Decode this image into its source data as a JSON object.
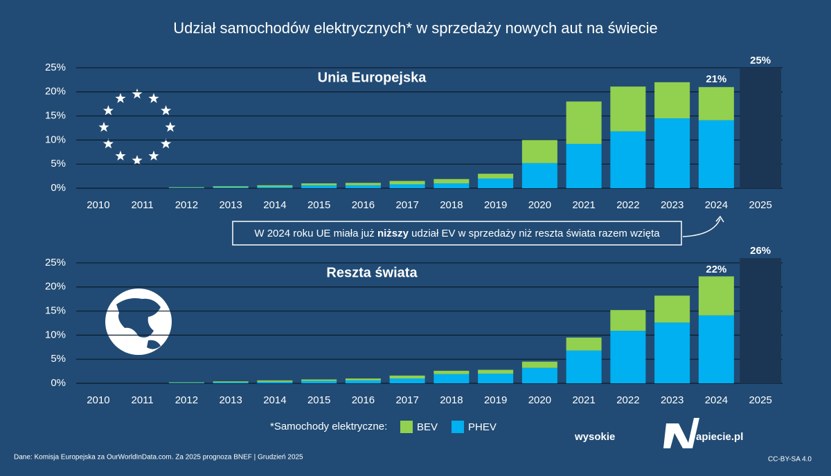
{
  "title": "Udział samochodów elektrycznych* w sprzedaży nowych aut na świecie",
  "chart_data": [
    {
      "type": "bar",
      "stacked": true,
      "title": "Unia Europejska",
      "categories": [
        "2010",
        "2011",
        "2012",
        "2013",
        "2014",
        "2015",
        "2016",
        "2017",
        "2018",
        "2019",
        "2020",
        "2021",
        "2022",
        "2023",
        "2024",
        "2025"
      ],
      "series": [
        {
          "name": "PHEV",
          "color": "#00b0f0",
          "values": [
            0,
            0,
            0.1,
            0.2,
            0.3,
            0.6,
            0.6,
            0.8,
            1.0,
            2.0,
            5.2,
            9.2,
            11.8,
            14.5,
            14.1,
            null
          ]
        },
        {
          "name": "BEV",
          "color": "#92d050",
          "values": [
            0,
            0,
            0.1,
            0.2,
            0.3,
            0.4,
            0.5,
            0.7,
            0.9,
            1.0,
            4.8,
            8.8,
            9.3,
            7.5,
            6.9,
            null
          ]
        }
      ],
      "totals": {
        "values": [
          null,
          null,
          null,
          null,
          null,
          null,
          null,
          null,
          null,
          null,
          null,
          null,
          null,
          null,
          21,
          null
        ],
        "value_labels": [
          null,
          null,
          null,
          null,
          null,
          null,
          null,
          null,
          null,
          null,
          null,
          null,
          null,
          null,
          "21%",
          null
        ]
      },
      "forecast": {
        "color": "#1b3654",
        "values": [
          null,
          null,
          null,
          null,
          null,
          null,
          null,
          null,
          null,
          null,
          null,
          null,
          null,
          null,
          null,
          25
        ],
        "value_labels": [
          null,
          null,
          null,
          null,
          null,
          null,
          null,
          null,
          null,
          null,
          null,
          null,
          null,
          null,
          null,
          "25%"
        ]
      },
      "ylim": [
        0,
        26
      ],
      "yticks": [
        {
          "value": 0,
          "label": "0%"
        },
        {
          "value": 5,
          "label": "5%"
        },
        {
          "value": 10,
          "label": "10%"
        },
        {
          "value": 15,
          "label": "15%"
        },
        {
          "value": 20,
          "label": "20%"
        },
        {
          "value": 25,
          "label": "25%"
        }
      ],
      "grid": true
    },
    {
      "type": "bar",
      "stacked": true,
      "title": "Reszta świata",
      "categories": [
        "2010",
        "2011",
        "2012",
        "2013",
        "2014",
        "2015",
        "2016",
        "2017",
        "2018",
        "2019",
        "2020",
        "2021",
        "2022",
        "2023",
        "2024",
        "2025"
      ],
      "series": [
        {
          "name": "PHEV",
          "color": "#00b0f0",
          "values": [
            0,
            0,
            0.1,
            0.2,
            0.3,
            0.5,
            0.6,
            1.0,
            1.9,
            2.0,
            3.2,
            6.8,
            10.9,
            12.6,
            14.1,
            null
          ]
        },
        {
          "name": "BEV",
          "color": "#92d050",
          "values": [
            0,
            0,
            0.1,
            0.2,
            0.3,
            0.3,
            0.4,
            0.6,
            0.7,
            0.8,
            1.3,
            2.7,
            4.3,
            5.6,
            8.1,
            null
          ]
        }
      ],
      "totals": {
        "values": [
          null,
          null,
          null,
          null,
          null,
          null,
          null,
          null,
          null,
          null,
          null,
          null,
          null,
          null,
          22,
          null
        ],
        "value_labels": [
          null,
          null,
          null,
          null,
          null,
          null,
          null,
          null,
          null,
          null,
          null,
          null,
          null,
          null,
          "22%",
          null
        ]
      },
      "forecast": {
        "color": "#1b3654",
        "values": [
          null,
          null,
          null,
          null,
          null,
          null,
          null,
          null,
          null,
          null,
          null,
          null,
          null,
          null,
          null,
          26
        ],
        "value_labels": [
          null,
          null,
          null,
          null,
          null,
          null,
          null,
          null,
          null,
          null,
          null,
          null,
          null,
          null,
          null,
          "26%"
        ]
      },
      "ylim": [
        0,
        26
      ],
      "yticks": [
        {
          "value": 0,
          "label": "0%"
        },
        {
          "value": 5,
          "label": "5%"
        },
        {
          "value": 10,
          "label": "10%"
        },
        {
          "value": 15,
          "label": "15%"
        },
        {
          "value": 20,
          "label": "20%"
        },
        {
          "value": 25,
          "label": "25%"
        }
      ],
      "grid": true
    }
  ],
  "callout": [
    "W 2024 roku UE miała już ",
    "niższy",
    " udział EV w sprzedaży niż reszta świata razem wzięta"
  ],
  "legend_title": "*Samochody elektryczne:",
  "source": "Dane: Komisja Europejska za OurWorldInData.com. Za 2025 prognoza BNEF  |  Grudzień 2025",
  "logo": [
    "wysokie",
    "apiecie.pl"
  ],
  "license": "CC-BY-SA 4.0"
}
